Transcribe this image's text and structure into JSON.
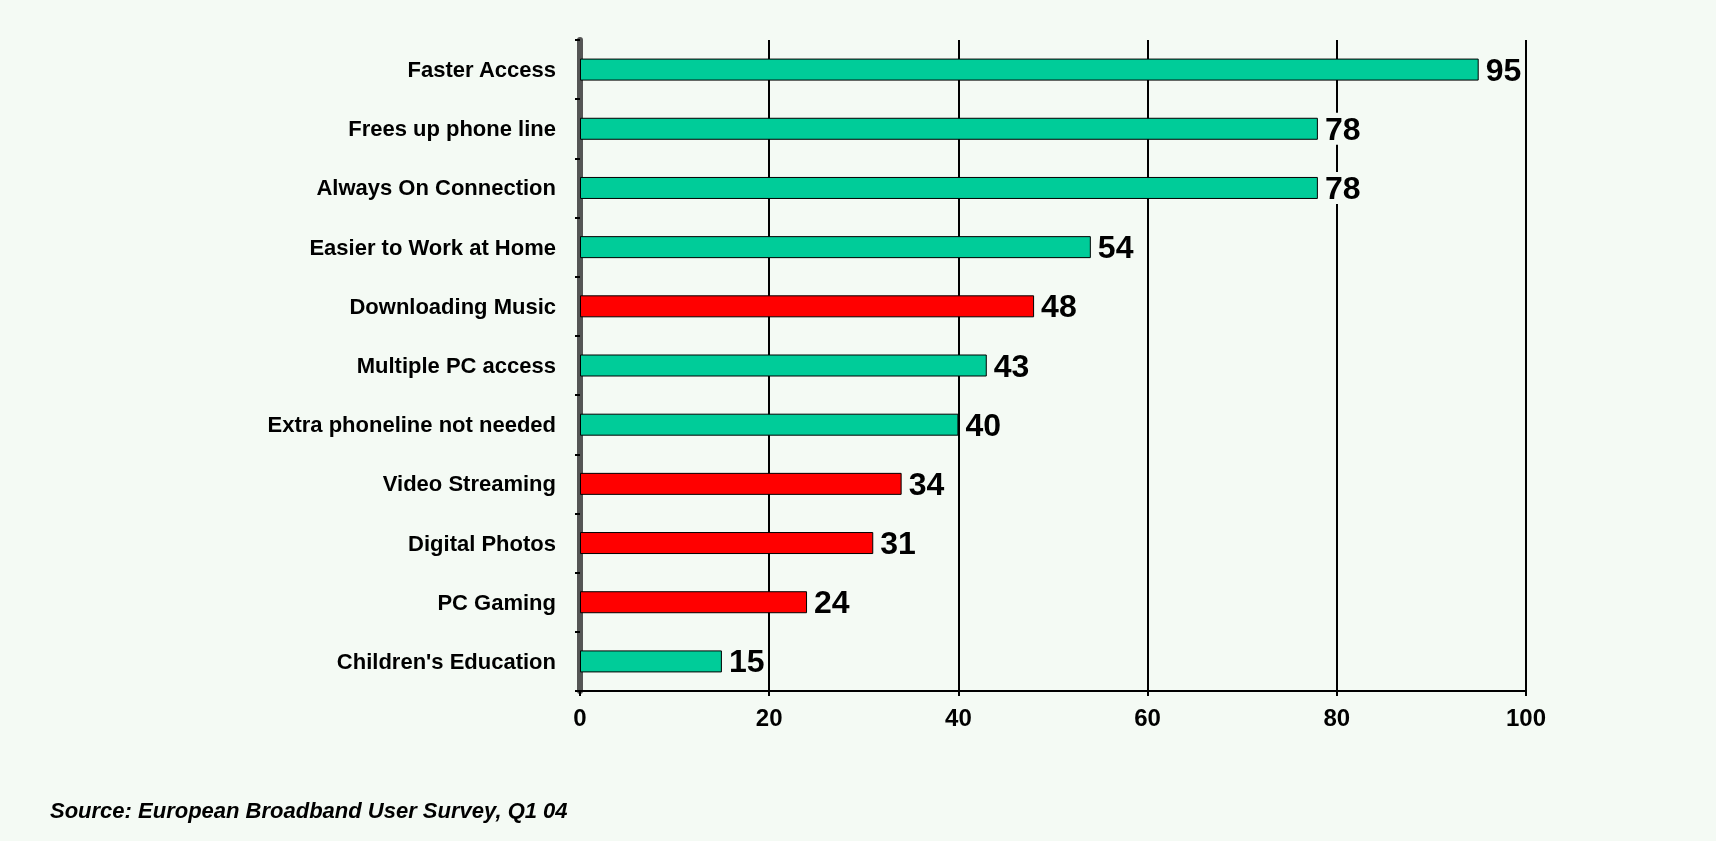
{
  "chart_data": {
    "type": "bar",
    "orientation": "horizontal",
    "categories": [
      "Faster Access",
      "Frees up phone line",
      "Always On Connection",
      "Easier to Work at Home",
      "Downloading Music",
      "Multiple PC access",
      "Extra phoneline not needed",
      "Video Streaming",
      "Digital Photos",
      "PC Gaming",
      "Children's Education"
    ],
    "values": [
      95,
      78,
      78,
      54,
      48,
      43,
      40,
      34,
      31,
      24,
      15
    ],
    "colors": [
      "#00cc99",
      "#00cc99",
      "#00cc99",
      "#00cc99",
      "#ff0000",
      "#00cc99",
      "#00cc99",
      "#ff0000",
      "#ff0000",
      "#ff0000",
      "#00cc99"
    ],
    "xlim": [
      0,
      100
    ],
    "xticks": [
      0,
      20,
      40,
      60,
      80,
      100
    ],
    "grid": "x",
    "data_labels": true,
    "annotations": [
      "Source: European Broadband User Survey, Q1 04"
    ]
  }
}
